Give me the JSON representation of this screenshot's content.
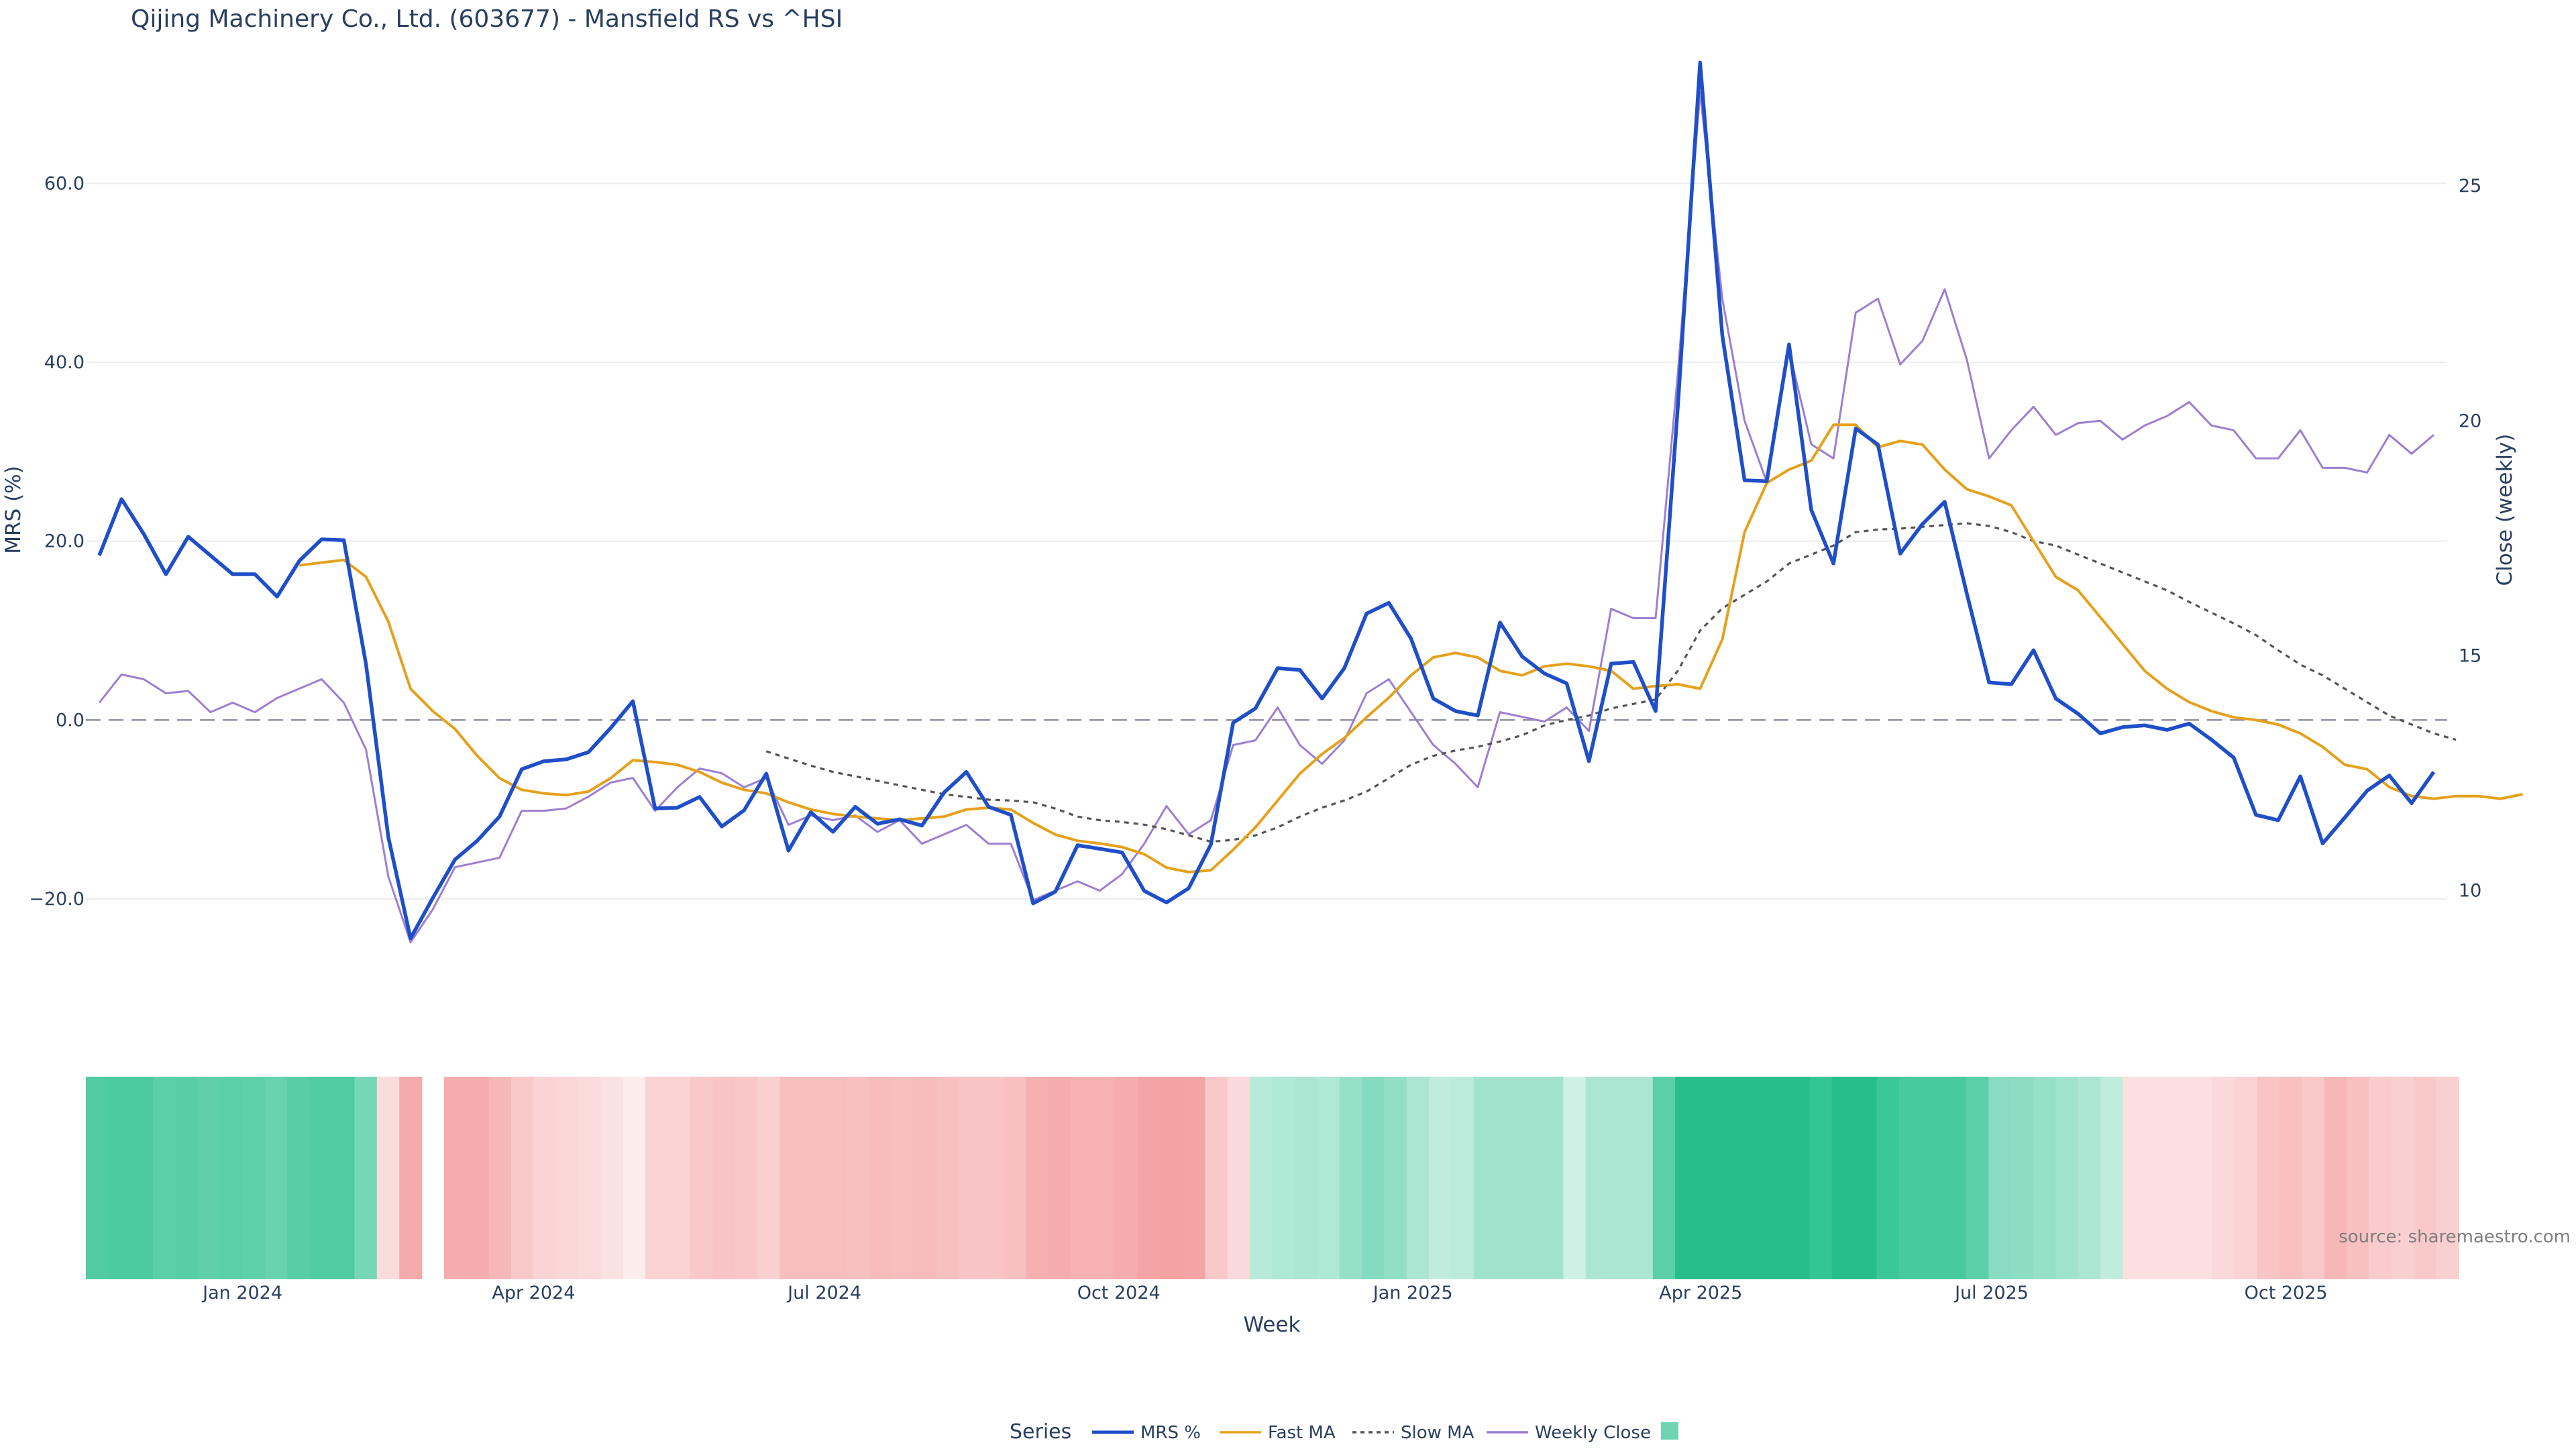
{
  "chart_data": {
    "type": "line",
    "title": "Qijing Machinery Co., Ltd. (603677) - Mansfield RS vs ^HSI",
    "xlabel": "Week",
    "ylabel": "MRS (%)",
    "y2label": "Close (weekly)",
    "source": "source: sharemaestro.com",
    "x_start": "2023-11-13",
    "x_step_days": 7,
    "ylim": [
      -32,
      76
    ],
    "y2lim": [
      7.54,
      28.1
    ],
    "yticks": [
      -20,
      0,
      20,
      40,
      60
    ],
    "yticklabels": [
      "−20.0",
      "0.0",
      "20.0",
      "40.0",
      "60.0"
    ],
    "y2ticks": [
      10,
      15,
      20,
      25
    ],
    "y2ticklabels": [
      "10",
      "15",
      "20",
      "25"
    ],
    "xticklabels": [
      "Jan 2024",
      "Apr 2024",
      "Jul 2024",
      "Oct 2024",
      "Jan 2025",
      "Apr 2025",
      "Jul 2025",
      "Oct 2025"
    ],
    "xtickdates": [
      "2024-01-01",
      "2024-04-01",
      "2024-07-01",
      "2024-10-01",
      "2025-01-01",
      "2025-04-01",
      "2025-07-01",
      "2025-10-01"
    ],
    "zero_line": 0,
    "legend": {
      "title": "Series",
      "placement": "bottom-center"
    },
    "series": [
      {
        "name": "MRS %",
        "axis": "y",
        "color": "#1f4fc8",
        "dash": "solid",
        "values": [
          18.4,
          24.7,
          20.8,
          16.3,
          20.5,
          18.4,
          16.3,
          16.3,
          13.8,
          17.8,
          20.2,
          20.1,
          6.2,
          -13.1,
          -24.4,
          -19.9,
          -15.6,
          -13.5,
          -10.8,
          -5.5,
          -4.6,
          -4.4,
          -3.6,
          -0.9,
          2.1,
          -9.9,
          -9.8,
          -8.6,
          -11.9,
          -10.1,
          -6.0,
          -14.6,
          -10.3,
          -12.5,
          -9.7,
          -11.6,
          -11.1,
          -11.8,
          -8.1,
          -5.8,
          -9.7,
          -10.6,
          -20.5,
          -19.2,
          -14.0,
          -14.4,
          -14.8,
          -19.1,
          -20.4,
          -18.8,
          -13.9,
          -0.3,
          1.3,
          5.8,
          5.6,
          2.4,
          5.8,
          11.9,
          13.1,
          9.1,
          2.4,
          1.0,
          0.5,
          10.9,
          7.1,
          5.2,
          4.1,
          -4.6,
          6.3,
          6.5,
          1.0,
          35.0,
          73.5,
          43.0,
          26.8,
          26.7,
          42.0,
          23.5,
          17.5,
          32.6,
          30.8,
          18.6,
          21.9,
          24.4,
          14.1,
          4.2,
          4.0,
          7.8,
          2.4,
          0.7,
          -1.5,
          -0.8,
          -0.6,
          -1.1,
          -0.4,
          -2.2,
          -4.2,
          -10.6,
          -11.2,
          -6.3,
          -13.8,
          -10.9,
          -7.9,
          -6.2,
          -9.3,
          -5.8
        ]
      },
      {
        "name": "Fast MA",
        "axis": "y",
        "color": "#e5a11c",
        "dash": "solid",
        "start_index": 9,
        "values": [
          17.3,
          17.6,
          17.9,
          16.0,
          11.0,
          3.5,
          1.0,
          -1.0,
          -4.0,
          -6.5,
          -7.8,
          -8.2,
          -8.4,
          -8.0,
          -6.5,
          -4.5,
          -4.7,
          -5.0,
          -5.8,
          -7.0,
          -7.8,
          -8.2,
          -9.2,
          -10.0,
          -10.5,
          -10.8,
          -11.0,
          -11.2,
          -11.0,
          -10.8,
          -10.0,
          -9.8,
          -10.0,
          -11.5,
          -12.8,
          -13.5,
          -13.8,
          -14.2,
          -15.0,
          -16.5,
          -17.0,
          -16.8,
          -14.5,
          -12.0,
          -9.0,
          -6.0,
          -3.8,
          -2.0,
          0.3,
          2.5,
          5.0,
          7.0,
          7.5,
          7.0,
          5.5,
          5.0,
          6.0,
          6.3,
          6.0,
          5.5,
          3.5,
          3.8,
          4.0,
          3.5,
          9.0,
          21.0,
          26.5,
          28.0,
          29.0,
          33.0,
          33.0,
          30.5,
          31.2,
          30.8,
          28.0,
          25.8,
          25.0,
          24.0,
          20.0,
          16.0,
          14.5,
          11.5,
          8.5,
          5.5,
          3.5,
          2.0,
          1.0,
          0.3,
          0.0,
          -0.5,
          -1.5,
          -3.0,
          -5.0,
          -5.5,
          -7.5,
          -8.5,
          -8.8,
          -8.5,
          -8.5,
          -8.8,
          -8.3
        ]
      },
      {
        "name": "Slow MA",
        "axis": "y",
        "color": "#555555",
        "dash": "dotted",
        "start_index": 30,
        "values": [
          -3.5,
          -4.3,
          -5.1,
          -5.8,
          -6.3,
          -6.8,
          -7.3,
          -7.8,
          -8.3,
          -8.6,
          -8.9,
          -9.0,
          -9.2,
          -9.9,
          -10.8,
          -11.2,
          -11.4,
          -11.7,
          -12.2,
          -12.9,
          -13.6,
          -13.4,
          -12.9,
          -12.0,
          -10.8,
          -9.8,
          -9.0,
          -8.0,
          -6.5,
          -5.0,
          -4.0,
          -3.4,
          -3.0,
          -2.4,
          -1.7,
          -0.6,
          0.0,
          0.5,
          1.3,
          1.8,
          2.3,
          5.5,
          10.0,
          12.5,
          14.0,
          15.5,
          17.5,
          18.5,
          19.5,
          21.0,
          21.3,
          21.4,
          21.6,
          21.8,
          22.0,
          21.7,
          21.0,
          20.0,
          19.5,
          18.5,
          17.5,
          16.5,
          15.5,
          14.5,
          13.2,
          12.0,
          10.8,
          9.5,
          7.8,
          6.2,
          5.0,
          3.5,
          2.0,
          0.5,
          -0.5,
          -1.5,
          -2.2
        ]
      },
      {
        "name": "Weekly Close",
        "axis": "y2",
        "color": "#9c7fd1",
        "dash": "solid",
        "values": [
          14.0,
          14.6,
          14.5,
          14.2,
          14.25,
          13.8,
          14.0,
          13.8,
          14.1,
          14.3,
          14.5,
          14.0,
          13.0,
          10.3,
          8.9,
          9.6,
          10.5,
          10.6,
          10.7,
          11.7,
          11.7,
          11.75,
          12.0,
          12.3,
          12.4,
          11.7,
          12.2,
          12.6,
          12.5,
          12.2,
          12.4,
          11.4,
          11.6,
          11.5,
          11.6,
          11.25,
          11.5,
          11.0,
          11.2,
          11.4,
          11.0,
          11.0,
          9.8,
          10.0,
          10.2,
          10.0,
          10.35,
          11.0,
          11.8,
          11.2,
          11.5,
          13.1,
          13.2,
          13.9,
          13.1,
          12.7,
          13.2,
          14.2,
          14.5,
          13.8,
          13.1,
          12.7,
          12.2,
          13.8,
          13.7,
          13.6,
          13.9,
          13.4,
          16.0,
          15.8,
          15.8,
          21.0,
          27.0,
          22.6,
          20.0,
          18.7,
          21.5,
          19.5,
          19.2,
          22.3,
          22.6,
          21.2,
          21.7,
          22.8,
          21.3,
          19.2,
          19.8,
          20.3,
          19.7,
          19.95,
          20.0,
          19.6,
          19.9,
          20.1,
          20.4,
          19.9,
          19.8,
          19.2,
          19.2,
          19.8,
          19.0,
          19.0,
          18.9,
          19.7,
          19.3,
          19.7
        ]
      }
    ],
    "strength_band": [
      {
        "v": 0.78
      },
      {
        "v": 0.8
      },
      {
        "v": 0.8
      },
      {
        "v": 0.72
      },
      {
        "v": 0.74
      },
      {
        "v": 0.7
      },
      {
        "v": 0.72
      },
      {
        "v": 0.7
      },
      {
        "v": 0.66
      },
      {
        "v": 0.74
      },
      {
        "v": 0.78
      },
      {
        "v": 0.78
      },
      {
        "v": 0.58
      },
      {
        "v": -0.18
      },
      {
        "v": -0.64
      },
      null,
      {
        "v": -0.62
      },
      {
        "v": -0.62
      },
      {
        "v": -0.52
      },
      {
        "v": -0.36
      },
      {
        "v": -0.26
      },
      {
        "v": -0.24
      },
      {
        "v": -0.2
      },
      {
        "v": -0.14
      },
      {
        "v": -0.04
      },
      {
        "v": -0.28
      },
      {
        "v": -0.28
      },
      {
        "v": -0.36
      },
      {
        "v": -0.4
      },
      {
        "v": -0.38
      },
      {
        "v": -0.3
      },
      {
        "v": -0.46
      },
      {
        "v": -0.46
      },
      {
        "v": -0.46
      },
      {
        "v": -0.44
      },
      {
        "v": -0.48
      },
      {
        "v": -0.46
      },
      {
        "v": -0.48
      },
      {
        "v": -0.44
      },
      {
        "v": -0.4
      },
      {
        "v": -0.4
      },
      {
        "v": -0.44
      },
      {
        "v": -0.6
      },
      {
        "v": -0.62
      },
      {
        "v": -0.58
      },
      {
        "v": -0.58
      },
      {
        "v": -0.62
      },
      {
        "v": -0.7
      },
      {
        "v": -0.72
      },
      {
        "v": -0.7
      },
      {
        "v": -0.36
      },
      {
        "v": -0.22
      },
      {
        "v": 0.24
      },
      {
        "v": 0.28
      },
      {
        "v": 0.3
      },
      {
        "v": 0.28
      },
      {
        "v": 0.42
      },
      {
        "v": 0.5
      },
      {
        "v": 0.44
      },
      {
        "v": 0.3
      },
      {
        "v": 0.2
      },
      {
        "v": 0.22
      },
      {
        "v": 0.36
      },
      {
        "v": 0.36
      },
      {
        "v": 0.36
      },
      {
        "v": 0.36
      },
      {
        "v": 0.12
      },
      {
        "v": 0.3
      },
      {
        "v": 0.3
      },
      {
        "v": 0.3
      },
      {
        "v": 0.72
      },
      {
        "v": 1.0
      },
      {
        "v": 1.0
      },
      {
        "v": 1.0
      },
      {
        "v": 1.0
      },
      {
        "v": 1.0
      },
      {
        "v": 1.0
      },
      {
        "v": 0.92
      },
      {
        "v": 1.0
      },
      {
        "v": 1.0
      },
      {
        "v": 0.88
      },
      {
        "v": 0.82
      },
      {
        "v": 0.82
      },
      {
        "v": 0.82
      },
      {
        "v": 0.72
      },
      {
        "v": 0.48
      },
      {
        "v": 0.46
      },
      {
        "v": 0.42
      },
      {
        "v": 0.36
      },
      {
        "v": 0.3
      },
      {
        "v": 0.2
      },
      {
        "v": -0.16
      },
      {
        "v": -0.16
      },
      {
        "v": -0.16
      },
      {
        "v": -0.16
      },
      {
        "v": -0.22
      },
      {
        "v": -0.26
      },
      {
        "v": -0.4
      },
      {
        "v": -0.44
      },
      {
        "v": -0.36
      },
      {
        "v": -0.52
      },
      {
        "v": -0.44
      },
      {
        "v": -0.34
      },
      {
        "v": -0.3
      },
      {
        "v": -0.36
      },
      {
        "v": -0.3
      }
    ],
    "band_colors": {
      "positive": "#26bf8c",
      "negative": "#f28385",
      "neutral": "#ffffff"
    }
  }
}
